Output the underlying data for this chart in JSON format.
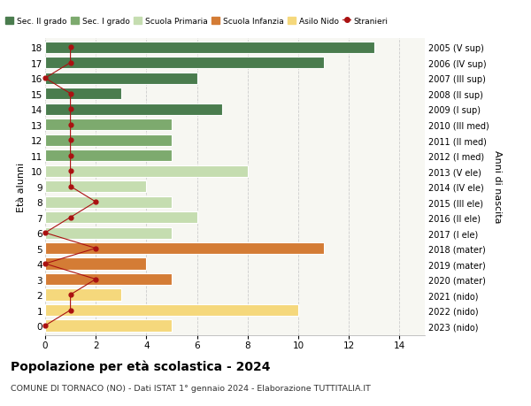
{
  "ages": [
    18,
    17,
    16,
    15,
    14,
    13,
    12,
    11,
    10,
    9,
    8,
    7,
    6,
    5,
    4,
    3,
    2,
    1,
    0
  ],
  "years": [
    "2005 (V sup)",
    "2006 (IV sup)",
    "2007 (III sup)",
    "2008 (II sup)",
    "2009 (I sup)",
    "2010 (III med)",
    "2011 (II med)",
    "2012 (I med)",
    "2013 (V ele)",
    "2014 (IV ele)",
    "2015 (III ele)",
    "2016 (II ele)",
    "2017 (I ele)",
    "2018 (mater)",
    "2019 (mater)",
    "2020 (mater)",
    "2021 (nido)",
    "2022 (nido)",
    "2023 (nido)"
  ],
  "values": [
    13,
    11,
    6,
    3,
    7,
    5,
    5,
    5,
    8,
    4,
    5,
    6,
    5,
    11,
    4,
    5,
    3,
    10,
    5
  ],
  "colors": {
    "sec2": "#4a7c4e",
    "sec1": "#7daa6e",
    "primaria": "#c5ddb0",
    "infanzia": "#d47c35",
    "nido": "#f5d87c"
  },
  "school_colors": [
    "#4a7c4e",
    "#4a7c4e",
    "#4a7c4e",
    "#4a7c4e",
    "#4a7c4e",
    "#7daa6e",
    "#7daa6e",
    "#7daa6e",
    "#c5ddb0",
    "#c5ddb0",
    "#c5ddb0",
    "#c5ddb0",
    "#c5ddb0",
    "#d47c35",
    "#d47c35",
    "#d47c35",
    "#f5d87c",
    "#f5d87c",
    "#f5d87c"
  ],
  "stranieri_x": [
    1,
    1,
    0,
    1,
    1,
    1,
    1,
    1,
    1,
    1,
    2,
    1,
    0,
    2,
    0,
    2,
    1,
    1,
    0
  ],
  "title": "Popolazione per età scolastica - 2024",
  "subtitle": "COMUNE DI TORNACO (NO) - Dati ISTAT 1° gennaio 2024 - Elaborazione TUTTITALIA.IT",
  "ylabel_left": "Età alunni",
  "ylabel_right": "Anni di nascita",
  "xlim": [
    0,
    15
  ],
  "bar_height": 0.75,
  "background_color": "#ffffff",
  "plot_bg_color": "#f7f7f2",
  "grid_color": "#cccccc",
  "stranieri_color": "#aa1111"
}
